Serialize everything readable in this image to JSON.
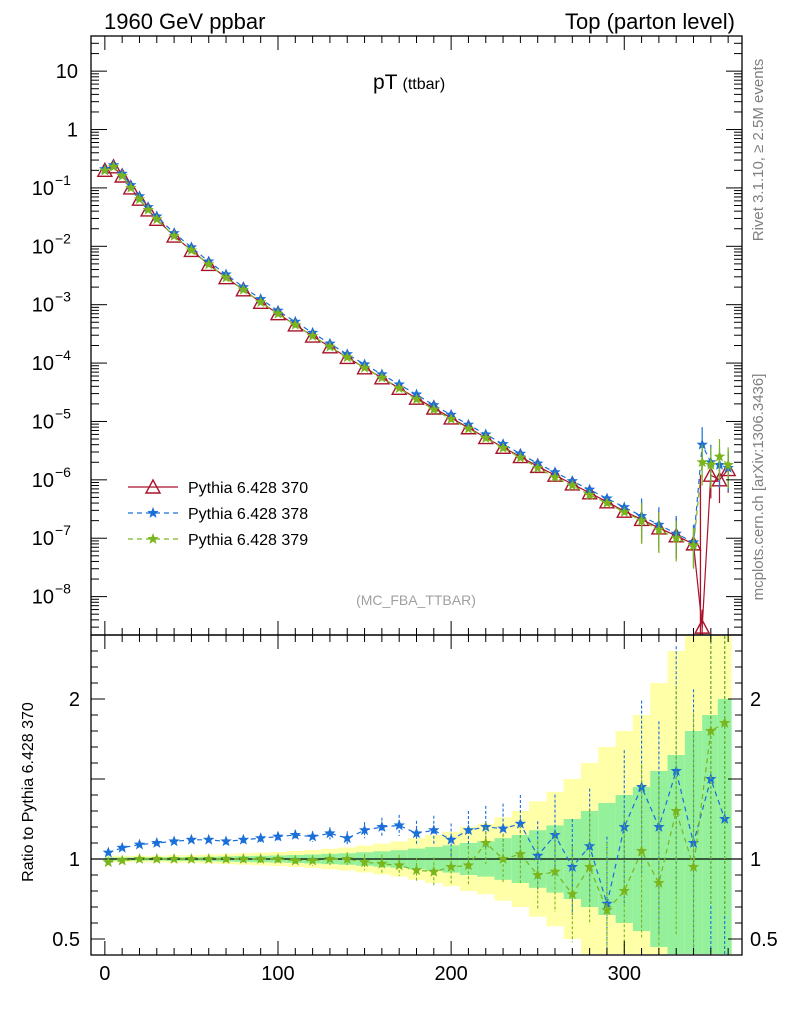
{
  "header": {
    "left": "1960 GeV ppbar",
    "right": "Top (parton level)"
  },
  "side_labels": {
    "rivet": "Rivet 3.1.10, ≥ 2.5M events",
    "mcplots": "mcplots.cern.ch [arXiv:1306.3436]"
  },
  "chart_data": {
    "type": "line",
    "title": "pT",
    "title_sub": "(ttbar)",
    "watermark": "(MC_FBA_TTBAR)",
    "xlabel": "",
    "ylabel": "",
    "ratio_ylabel": "Ratio to Pythia 6.428 370",
    "xlim": [
      -8,
      368
    ],
    "ylim_main": [
      2.2e-09,
      40
    ],
    "y_log": true,
    "ylim_ratio": [
      0.4,
      2.4
    ],
    "x_ticks": [
      0,
      100,
      200,
      300
    ],
    "y_ticks_main": [
      {
        "v": 10,
        "label": "10"
      },
      {
        "v": 1,
        "label": "1"
      },
      {
        "v": 0.1,
        "label": "10",
        "exp": "−1"
      },
      {
        "v": 0.01,
        "label": "10",
        "exp": "−2"
      },
      {
        "v": 0.001,
        "label": "10",
        "exp": "−3"
      },
      {
        "v": 0.0001,
        "label": "10",
        "exp": "−4"
      },
      {
        "v": 1e-05,
        "label": "10",
        "exp": "−5"
      },
      {
        "v": 1e-06,
        "label": "10",
        "exp": "−6"
      },
      {
        "v": 1e-07,
        "label": "10",
        "exp": "−7"
      },
      {
        "v": 1e-08,
        "label": "10",
        "exp": "−8"
      }
    ],
    "y_ticks_ratio": [
      {
        "v": 0.5,
        "label": "0.5"
      },
      {
        "v": 1,
        "label": "1"
      },
      {
        "v": 2,
        "label": "2"
      }
    ],
    "legend_position": "lower-left",
    "series": [
      {
        "name": "Pythia 6.428 370",
        "color": "#a8122a",
        "marker": "triangle",
        "dash": "",
        "x": [
          0,
          5,
          10,
          15,
          20,
          25,
          30,
          40,
          50,
          60,
          70,
          80,
          90,
          100,
          110,
          120,
          130,
          140,
          150,
          160,
          170,
          180,
          190,
          200,
          210,
          220,
          230,
          240,
          250,
          260,
          270,
          280,
          290,
          300,
          310,
          320,
          330,
          340,
          345,
          350,
          355,
          360
        ],
        "y": [
          0.2,
          0.23,
          0.16,
          0.1,
          0.064,
          0.042,
          0.029,
          0.015,
          0.0085,
          0.0049,
          0.0029,
          0.0018,
          0.0011,
          0.0007,
          0.00045,
          0.00029,
          0.00019,
          0.000125,
          8.3e-05,
          5.6e-05,
          3.7e-05,
          2.5e-05,
          1.7e-05,
          1.15e-05,
          7.8e-06,
          5.3e-06,
          3.6e-06,
          2.5e-06,
          1.7e-06,
          1.2e-06,
          8.5e-07,
          6e-07,
          4.2e-07,
          2.9e-07,
          2.1e-07,
          1.5e-07,
          1.1e-07,
          8e-08,
          3e-09,
          1.2e-06,
          1e-06,
          1.5e-06
        ]
      },
      {
        "name": "Pythia 6.428 378",
        "color": "#1a6fd8",
        "marker": "star",
        "dash": "5,4",
        "x": [
          0,
          5,
          10,
          15,
          20,
          25,
          30,
          40,
          50,
          60,
          70,
          80,
          90,
          100,
          110,
          120,
          130,
          140,
          150,
          160,
          170,
          180,
          190,
          200,
          210,
          220,
          230,
          240,
          250,
          260,
          270,
          280,
          290,
          300,
          310,
          320,
          330,
          340,
          345,
          350,
          355,
          360
        ],
        "y": [
          0.21,
          0.245,
          0.175,
          0.112,
          0.072,
          0.047,
          0.0325,
          0.0168,
          0.0096,
          0.0055,
          0.0033,
          0.002,
          0.00125,
          0.00079,
          0.00051,
          0.00033,
          0.000215,
          0.000142,
          9.5e-05,
          6.4e-05,
          4.3e-05,
          2.9e-05,
          1.9e-05,
          1.3e-05,
          8.8e-06,
          6e-06,
          4.1e-06,
          2.8e-06,
          1.9e-06,
          1.35e-06,
          9.5e-07,
          6.8e-07,
          4.8e-07,
          3.4e-07,
          2.4e-07,
          1.7e-07,
          1.2e-07,
          8.5e-08,
          4e-06,
          2e-06,
          1.8e-06,
          1.6e-06
        ]
      },
      {
        "name": "Pythia 6.428 379",
        "color": "#7ab51d",
        "marker": "star",
        "dash": "5,4",
        "x": [
          0,
          5,
          10,
          15,
          20,
          25,
          30,
          40,
          50,
          60,
          70,
          80,
          90,
          100,
          110,
          120,
          130,
          140,
          150,
          160,
          170,
          180,
          190,
          200,
          210,
          220,
          230,
          240,
          250,
          260,
          270,
          280,
          290,
          300,
          310,
          320,
          330,
          340,
          345,
          350,
          355,
          360
        ],
        "y": [
          0.198,
          0.23,
          0.16,
          0.1,
          0.064,
          0.042,
          0.029,
          0.015,
          0.0085,
          0.0049,
          0.0029,
          0.0018,
          0.0011,
          0.0007,
          0.00045,
          0.00029,
          0.00019,
          0.000125,
          8.3e-05,
          5.6e-05,
          3.7e-05,
          2.4e-05,
          1.6e-05,
          1.1e-05,
          7.5e-06,
          5.2e-06,
          3.5e-06,
          2.4e-06,
          1.6e-06,
          1.1e-06,
          8e-07,
          5.5e-07,
          4e-07,
          2.8e-07,
          2e-07,
          1.4e-07,
          1e-07,
          7.5e-08,
          2e-06,
          1.8e-06,
          2.5e-06,
          1.8e-06
        ]
      }
    ],
    "ratio": {
      "x": [
        2,
        10,
        20,
        30,
        40,
        50,
        60,
        70,
        80,
        90,
        100,
        110,
        120,
        130,
        140,
        150,
        160,
        170,
        180,
        190,
        200,
        210,
        220,
        230,
        240,
        250,
        260,
        270,
        280,
        290,
        300,
        310,
        320,
        330,
        340,
        350,
        358
      ],
      "band_half": [
        0.01,
        0.01,
        0.01,
        0.01,
        0.012,
        0.012,
        0.014,
        0.016,
        0.018,
        0.02,
        0.022,
        0.025,
        0.028,
        0.032,
        0.036,
        0.042,
        0.048,
        0.055,
        0.065,
        0.075,
        0.085,
        0.1,
        0.11,
        0.13,
        0.15,
        0.18,
        0.21,
        0.25,
        0.3,
        0.35,
        0.4,
        0.45,
        0.55,
        0.65,
        0.8,
        0.9,
        1.0
      ],
      "r378": [
        1.04,
        1.07,
        1.09,
        1.1,
        1.11,
        1.12,
        1.12,
        1.11,
        1.12,
        1.13,
        1.14,
        1.15,
        1.14,
        1.16,
        1.13,
        1.18,
        1.2,
        1.21,
        1.16,
        1.18,
        1.12,
        1.18,
        1.2,
        1.19,
        1.22,
        1.02,
        1.15,
        0.95,
        1.08,
        0.72,
        1.2,
        1.45,
        1.2,
        1.55,
        1.1,
        1.5,
        1.25
      ],
      "r379": [
        0.98,
        0.99,
        1.0,
        1.0,
        1.0,
        1.0,
        1.0,
        1.0,
        1.0,
        1.0,
        1.0,
        0.99,
        0.99,
        1.0,
        1.0,
        0.98,
        0.97,
        0.96,
        0.93,
        0.92,
        0.95,
        0.96,
        1.1,
        1.0,
        1.03,
        0.9,
        0.92,
        0.78,
        0.95,
        0.68,
        0.8,
        1.05,
        0.85,
        1.3,
        0.95,
        1.8,
        1.85
      ]
    }
  }
}
